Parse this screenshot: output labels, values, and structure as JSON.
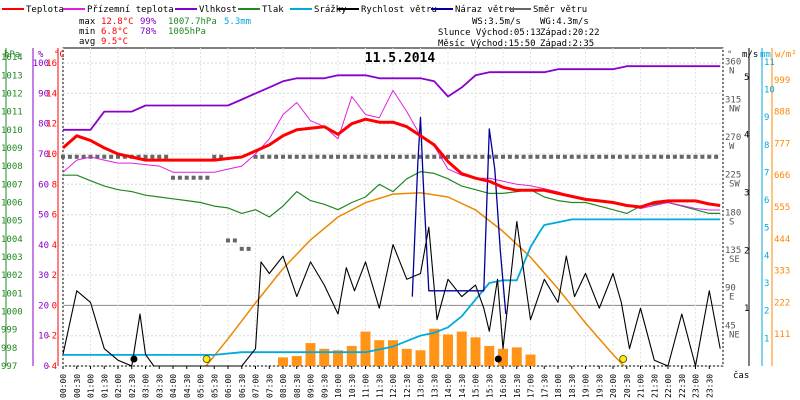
{
  "chart_data": {
    "type": "line",
    "title": "11.5.2014",
    "legend": [
      {
        "label": "Teplota",
        "color": "#ff0000"
      },
      {
        "label": "Přízemní teplota",
        "color": "#e020e0"
      },
      {
        "label": "Vlhkost",
        "color": "#8800cc"
      },
      {
        "label": "Tlak",
        "color": "#228822"
      },
      {
        "label": "Srážky",
        "color": "#00aadd"
      },
      {
        "label": "Rychlost větru",
        "color": "#000000"
      },
      {
        "label": "Náraz větru",
        "color": "#000099"
      },
      {
        "label": "Směr větru",
        "color": "#666666"
      }
    ],
    "stats": [
      [
        "max",
        "12.8°C",
        "99%",
        "1007.7hPa",
        "5.3mm"
      ],
      [
        "min",
        "6.8°C",
        "78%",
        "1005hPa",
        ""
      ],
      [
        "avg",
        "9.5°C",
        "",
        "",
        ""
      ]
    ],
    "info": {
      "wind_line": "WS:3.5m/s",
      "gust_line": "WG:4.3m/s",
      "sun_line": "Slunce Východ:05:13",
      "sun_set": "Západ:20:22",
      "moon_line": "Měsíc Východ:15:50",
      "moon_set": "Západ:2:35"
    },
    "axis_headers": {
      "hpa": "hPa",
      "pct": "%",
      "degc": "°C",
      "deg": "°",
      "ms": "m/s",
      "mm": "mm",
      "wm": "w/m²",
      "time": "čas"
    },
    "axes": {
      "pressure_ticks": [
        "1014",
        "1013",
        "1012",
        "1011",
        "1010",
        "1009",
        "1008",
        "1007",
        "1006",
        "1005",
        "1004",
        "1003",
        "1002",
        "1001",
        "1000",
        "999",
        "998",
        "997"
      ],
      "humidity_ticks": [
        "100",
        "90",
        "80",
        "70",
        "60",
        "50",
        "40",
        "30",
        "20",
        "10",
        "0"
      ],
      "temp_ticks": [
        "16",
        "14",
        "12",
        "10",
        "8",
        "6",
        "4",
        "2",
        "0",
        "-2",
        "-4"
      ],
      "dir_ticks": [
        {
          "v": 360,
          "deg": "360",
          "name": "N"
        },
        {
          "v": 315,
          "deg": "315",
          "name": "NW"
        },
        {
          "v": 270,
          "deg": "270",
          "name": "W"
        },
        {
          "v": 225,
          "deg": "225",
          "name": "SW"
        },
        {
          "v": 180,
          "deg": "180",
          "name": "S"
        },
        {
          "v": 135,
          "deg": "135",
          "name": "SE"
        },
        {
          "v": 90,
          "deg": "90",
          "name": "E"
        },
        {
          "v": 45,
          "deg": "45",
          "name": "NE"
        }
      ],
      "ms_ticks": [
        "5",
        "4",
        "3",
        "2",
        "1"
      ],
      "mm_ticks": [
        "11",
        "10",
        "9",
        "8",
        "7",
        "6",
        "5",
        "4",
        "3",
        "2",
        "1"
      ],
      "wm_ticks": [
        "999",
        "888",
        "777",
        "666",
        "555",
        "444",
        "333",
        "222",
        "111"
      ],
      "time_ticks": [
        "00:00",
        "00:30",
        "01:00",
        "01:30",
        "02:00",
        "02:30",
        "03:00",
        "03:30",
        "04:00",
        "04:30",
        "05:00",
        "05:30",
        "06:00",
        "06:30",
        "07:00",
        "07:30",
        "08:00",
        "08:30",
        "09:00",
        "09:30",
        "10:00",
        "10:30",
        "11:00",
        "11:30",
        "12:00",
        "12:30",
        "13:00",
        "13:30",
        "14:00",
        "14:30",
        "15:00",
        "15:30",
        "16:00",
        "16:30",
        "17:00",
        "17:30",
        "18:00",
        "18:30",
        "19:00",
        "19:30",
        "20:00",
        "20:30",
        "21:00",
        "21:30",
        "22:00",
        "22:30",
        "23:00",
        "23:30"
      ]
    },
    "series": {
      "temperature_c": {
        "x": [
          0,
          0.5,
          1,
          1.5,
          2,
          2.5,
          3,
          3.5,
          4,
          4.5,
          5,
          5.5,
          6,
          6.5,
          7,
          7.5,
          8,
          8.5,
          9,
          9.5,
          10,
          10.5,
          11,
          11.5,
          12,
          12.5,
          13,
          13.5,
          14,
          14.5,
          15,
          15.5,
          16,
          16.5,
          17,
          17.5,
          18,
          18.5,
          19,
          19.5,
          20,
          20.5,
          21,
          21.5,
          22,
          22.5,
          23,
          23.5,
          23.9
        ],
        "y": [
          10.4,
          11.2,
          10.9,
          10.4,
          10.0,
          9.8,
          9.6,
          9.6,
          9.6,
          9.6,
          9.6,
          9.6,
          9.7,
          9.8,
          10.2,
          10.6,
          11.2,
          11.6,
          11.7,
          11.8,
          11.3,
          12.0,
          12.3,
          12.1,
          12.1,
          11.8,
          11.2,
          10.6,
          9.5,
          8.7,
          8.4,
          8.2,
          7.8,
          7.6,
          7.6,
          7.6,
          7.4,
          7.2,
          7.0,
          6.9,
          6.8,
          6.6,
          6.5,
          6.8,
          6.9,
          6.9,
          6.9,
          6.7,
          6.6
        ]
      },
      "ground_temperature_c": {
        "x": [
          0,
          0.5,
          1,
          1.5,
          2,
          2.5,
          3,
          3.5,
          4,
          4.5,
          5,
          5.5,
          6,
          6.5,
          7,
          7.5,
          8,
          8.5,
          9,
          9.5,
          10,
          10.5,
          11,
          11.5,
          12,
          12.5,
          13,
          13.5,
          14,
          14.5,
          15,
          15.5,
          16,
          16.5,
          17,
          17.5,
          18,
          18.5,
          19,
          19.5,
          20,
          20.5,
          21,
          21.5,
          22,
          22.5,
          23,
          23.5,
          23.9
        ],
        "y": [
          8.8,
          9.6,
          9.8,
          9.6,
          9.4,
          9.4,
          9.3,
          9.2,
          8.8,
          8.8,
          8.8,
          8.8,
          9.0,
          9.2,
          10.0,
          11.0,
          12.6,
          13.4,
          12.2,
          11.8,
          11.0,
          13.8,
          12.6,
          12.4,
          14.2,
          12.8,
          11.2,
          10.5,
          9.0,
          8.6,
          8.4,
          8.4,
          8.2,
          8.0,
          7.9,
          7.7,
          7.5,
          7.2,
          7.0,
          6.9,
          6.8,
          6.6,
          6.4,
          6.6,
          6.8,
          6.6,
          6.4,
          6.3,
          6.3
        ]
      },
      "humidity_pct": {
        "x": [
          0,
          0.5,
          1,
          1.5,
          2,
          2.5,
          3,
          3.5,
          4,
          4.5,
          5,
          5.5,
          6,
          6.5,
          7,
          7.5,
          8,
          8.5,
          9,
          9.5,
          10,
          10.5,
          11,
          11.5,
          12,
          12.5,
          13,
          13.5,
          14,
          14.5,
          15,
          15.5,
          16,
          16.5,
          17,
          17.5,
          18,
          18.5,
          19,
          19.5,
          20,
          20.5,
          21,
          21.5,
          22,
          22.5,
          23,
          23.5,
          23.9
        ],
        "y": [
          78,
          78,
          78,
          84,
          84,
          84,
          86,
          86,
          86,
          86,
          86,
          86,
          86,
          88,
          90,
          92,
          94,
          95,
          95,
          95,
          96,
          96,
          96,
          95,
          95,
          95,
          95,
          94,
          89,
          92,
          96,
          97,
          97,
          97,
          97,
          97,
          98,
          98,
          98,
          98,
          98,
          99,
          99,
          99,
          99,
          99,
          99,
          99,
          99
        ]
      },
      "pressure_hpa": {
        "x": [
          0,
          0.5,
          1,
          1.5,
          2,
          2.5,
          3,
          3.5,
          4,
          4.5,
          5,
          5.5,
          6,
          6.5,
          7,
          7.5,
          8,
          8.5,
          9,
          9.5,
          10,
          10.5,
          11,
          11.5,
          12,
          12.5,
          13,
          13.5,
          14,
          14.5,
          15,
          15.5,
          16,
          16.5,
          17,
          17.5,
          18,
          18.5,
          19,
          19.5,
          20,
          20.5,
          21,
          21.5,
          22,
          22.5,
          23,
          23.5,
          23.9
        ],
        "y": [
          1007.5,
          1007.5,
          1007.2,
          1006.9,
          1006.7,
          1006.6,
          1006.4,
          1006.3,
          1006.2,
          1006.1,
          1006.0,
          1005.8,
          1005.7,
          1005.4,
          1005.6,
          1005.2,
          1005.8,
          1006.6,
          1006.1,
          1005.9,
          1005.6,
          1006.0,
          1006.3,
          1007.0,
          1006.6,
          1007.3,
          1007.7,
          1007.6,
          1007.3,
          1006.9,
          1006.7,
          1006.5,
          1006.5,
          1006.6,
          1006.7,
          1006.3,
          1006.1,
          1006.0,
          1006.0,
          1005.8,
          1005.6,
          1005.4,
          1005.8,
          1005.9,
          1006.0,
          1005.8,
          1005.6,
          1005.4,
          1005.4
        ]
      },
      "precipitation_mm": {
        "x": [
          0,
          3.5,
          5.5,
          6.5,
          7,
          7.5,
          8,
          8.5,
          9,
          9.5,
          10,
          11,
          12,
          12.5,
          13,
          13.5,
          14,
          14.5,
          15,
          15.5,
          16,
          16.5,
          17,
          17.3,
          17.5,
          18,
          18.5,
          19,
          20,
          21,
          22,
          23,
          23.9
        ],
        "y": [
          0.4,
          0.4,
          0.4,
          0.5,
          0.5,
          0.5,
          0.5,
          0.5,
          0.5,
          0.5,
          0.5,
          0.5,
          0.7,
          0.9,
          1.1,
          1.2,
          1.4,
          1.8,
          2.4,
          3.0,
          3.1,
          3.1,
          4.3,
          4.8,
          5.1,
          5.2,
          5.3,
          5.3,
          5.3,
          5.3,
          5.3,
          5.3,
          5.3
        ]
      },
      "wind_speed_ms": {
        "x": [
          0,
          0.5,
          1,
          1.5,
          2,
          2.5,
          2.8,
          3,
          3.3,
          3.6,
          4,
          4.5,
          5,
          5.5,
          6,
          6.5,
          7,
          7.2,
          7.5,
          8,
          8.5,
          9,
          9.5,
          10,
          10.3,
          10.6,
          11,
          11.5,
          12,
          12.5,
          13,
          13.3,
          13.6,
          14,
          14.5,
          15,
          15.3,
          15.5,
          15.8,
          16,
          16.5,
          17,
          17.5,
          18,
          18.3,
          18.6,
          19,
          19.5,
          20,
          20.3,
          20.6,
          21,
          21.5,
          22,
          22.5,
          23,
          23.5,
          23.9
        ],
        "y": [
          0.2,
          1.3,
          1.1,
          0.3,
          0.1,
          0,
          0.9,
          0.2,
          0,
          0,
          0,
          0,
          0,
          0,
          0,
          0,
          0.3,
          1.8,
          1.6,
          1.9,
          1.2,
          1.8,
          1.4,
          0.9,
          1.7,
          1.3,
          1.8,
          1.0,
          2.1,
          1.5,
          1.6,
          2.4,
          0.8,
          1.5,
          1.2,
          1.4,
          1.0,
          0.6,
          1.5,
          0.3,
          2.5,
          0.8,
          1.5,
          1.1,
          1.9,
          1.2,
          1.6,
          1.0,
          1.6,
          1.1,
          0.3,
          1.0,
          0.1,
          0,
          0.9,
          0,
          1.3,
          0.3
        ]
      },
      "wind_gust_ms": {
        "x": [
          12.7,
          12.9,
          13.0,
          13.1,
          13.3,
          15.3,
          15.5,
          15.7,
          15.9,
          16.1
        ],
        "y": [
          1.2,
          3.5,
          4.3,
          3.2,
          1.3,
          1.3,
          4.1,
          3.4,
          2.0,
          0.9
        ]
      },
      "solar_wm2": {
        "x": [
          5.2,
          6,
          7,
          8,
          9,
          10,
          11,
          12,
          13,
          14,
          15,
          16,
          17,
          18,
          19,
          20,
          20.4
        ],
        "y": [
          0,
          95,
          220,
          340,
          440,
          520,
          570,
          600,
          605,
          590,
          545,
          470,
          380,
          270,
          150,
          40,
          0
        ]
      },
      "solar_bars_wm2": {
        "x": [
          8,
          8.5,
          9,
          9.5,
          10,
          10.5,
          11,
          11.5,
          12,
          12.5,
          13,
          13.5,
          14,
          14.5,
          15,
          15.5,
          16,
          16.5,
          17
        ],
        "y": [
          30,
          35,
          80,
          60,
          55,
          70,
          120,
          90,
          90,
          60,
          55,
          130,
          110,
          120,
          100,
          70,
          60,
          65,
          40
        ]
      },
      "wind_direction_deg": {
        "x": [
          0,
          0.5,
          1,
          1.5,
          2,
          2.5,
          3,
          3.5,
          4,
          4.5,
          5,
          5.5,
          6,
          6.5,
          7,
          7.5,
          8,
          8.5,
          9,
          9.5,
          10,
          10.5,
          11,
          11.5,
          12,
          12.5,
          13,
          13.5,
          14,
          14.5,
          15,
          15.5,
          16,
          16.5,
          17,
          17.5,
          18,
          18.5,
          19,
          19.5,
          20,
          20.5,
          21,
          21.5,
          22,
          22.5,
          23,
          23.5
        ],
        "y": [
          250,
          250,
          250,
          250,
          250,
          250,
          250,
          250,
          225,
          225,
          225,
          250,
          150,
          140,
          250,
          250,
          250,
          250,
          250,
          250,
          250,
          250,
          250,
          250,
          250,
          250,
          250,
          250,
          250,
          250,
          250,
          250,
          250,
          250,
          250,
          250,
          250,
          250,
          250,
          250,
          250,
          250,
          250,
          250,
          250,
          250,
          250,
          250
        ]
      }
    },
    "markers": {
      "sunrise": {
        "hour": 5.22,
        "color": "#ffee00"
      },
      "sunset": {
        "hour": 20.37,
        "color": "#ffee00"
      },
      "moonset": {
        "hour": 2.58,
        "color": "#000000"
      },
      "moonrise": {
        "hour": 15.83,
        "color": "#000000"
      }
    },
    "ranges": {
      "temp": [
        -4,
        17
      ],
      "pressure": [
        997,
        1014.5
      ],
      "humidity": [
        0,
        105
      ],
      "direction": [
        0,
        380
      ],
      "ms": [
        0,
        5.5
      ],
      "mm": [
        0,
        11.5
      ],
      "wm": [
        0,
        1110
      ]
    },
    "grid": true
  }
}
